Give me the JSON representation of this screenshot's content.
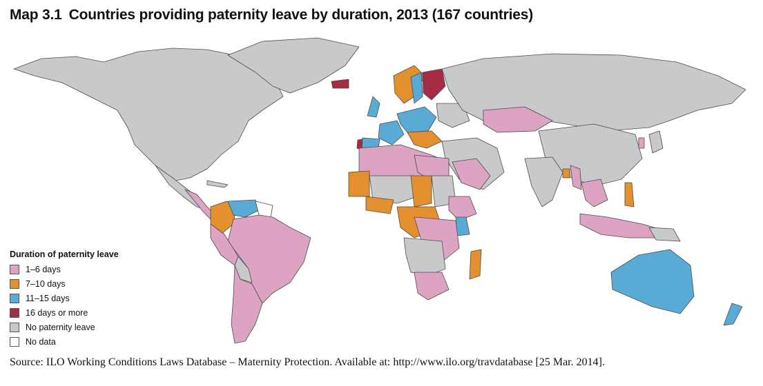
{
  "map": {
    "title_number": "Map 3.1",
    "title": "Countries providing paternity leave by duration, 2013 (167 countries)",
    "legend": {
      "title": "Duration of paternity leave",
      "items": [
        {
          "label": "1–6 days",
          "color": "#dca4c2"
        },
        {
          "label": "7–10 days",
          "color": "#e5902e"
        },
        {
          "label": "11–15 days",
          "color": "#5aaad6"
        },
        {
          "label": "16 days or more",
          "color": "#a52c44"
        },
        {
          "label": "No paternity leave",
          "color": "#c8c9cb"
        },
        {
          "label": "No data",
          "color": "#ffffff"
        }
      ]
    },
    "source": "Source: ILO Working Conditions Laws Database – Maternity Protection. Available at: http://www.ilo.org/travdatabase [25 Mar. 2014]."
  }
}
